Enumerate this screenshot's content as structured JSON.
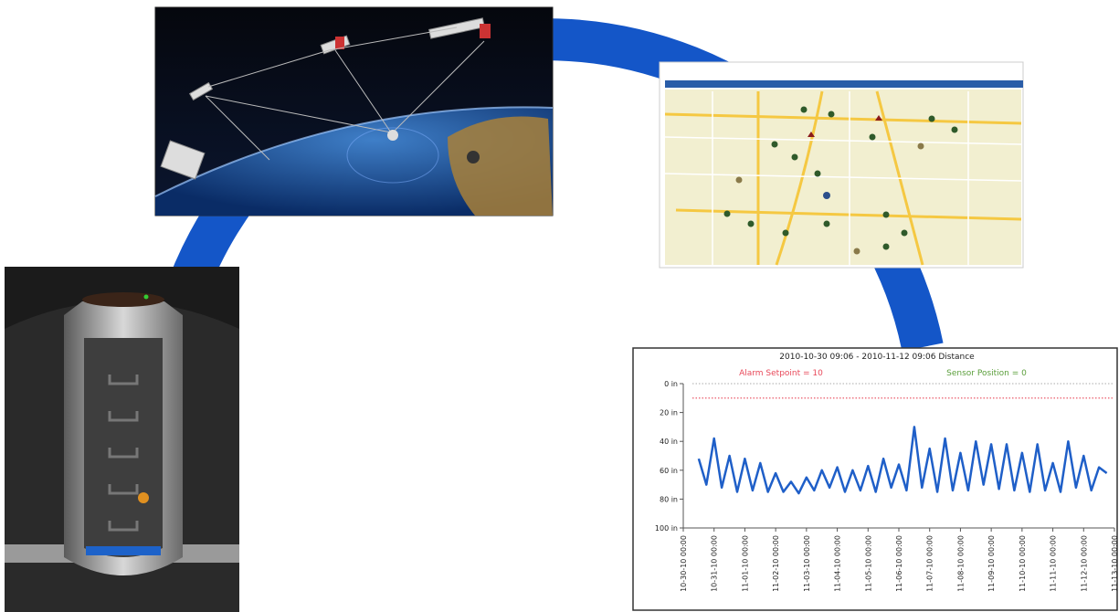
{
  "chart_data": {
    "type": "line",
    "title": "2010-10-30 09:06 - 2010-11-12 09:06 Distance",
    "color": "#1f5fc8",
    "x": [
      "2010-10-30 12:00",
      "2010-10-30 18:00",
      "2010-10-31 00:00",
      "2010-10-31 06:00",
      "2010-10-31 12:00",
      "2010-10-31 18:00",
      "2010-11-01 00:00",
      "2010-11-01 06:00",
      "2010-11-01 12:00",
      "2010-11-01 18:00",
      "2010-11-02 00:00",
      "2010-11-02 06:00",
      "2010-11-02 12:00",
      "2010-11-02 18:00",
      "2010-11-03 00:00",
      "2010-11-03 06:00",
      "2010-11-03 12:00",
      "2010-11-03 18:00",
      "2010-11-04 00:00",
      "2010-11-04 06:00",
      "2010-11-04 12:00",
      "2010-11-04 18:00",
      "2010-11-05 00:00",
      "2010-11-05 06:00",
      "2010-11-05 12:00",
      "2010-11-05 18:00",
      "2010-11-06 00:00",
      "2010-11-06 06:00",
      "2010-11-06 12:00",
      "2010-11-06 18:00",
      "2010-11-07 00:00",
      "2010-11-07 06:00",
      "2010-11-07 12:00",
      "2010-11-07 18:00",
      "2010-11-08 00:00",
      "2010-11-08 06:00",
      "2010-11-08 12:00",
      "2010-11-08 18:00",
      "2010-11-09 00:00",
      "2010-11-09 06:00",
      "2010-11-09 12:00",
      "2010-11-09 18:00",
      "2010-11-10 00:00",
      "2010-11-10 06:00",
      "2010-11-10 12:00",
      "2010-11-10 18:00",
      "2010-11-11 00:00",
      "2010-11-11 06:00",
      "2010-11-11 12:00",
      "2010-11-11 18:00",
      "2010-11-12 00:00",
      "2010-11-12 06:00",
      "2010-11-12 12:00",
      "2010-11-12 18:00"
    ],
    "values": [
      52,
      70,
      38,
      72,
      50,
      75,
      52,
      74,
      55,
      75,
      62,
      75,
      68,
      76,
      65,
      74,
      60,
      72,
      58,
      75,
      60,
      74,
      57,
      75,
      52,
      72,
      56,
      74,
      30,
      72,
      45,
      75,
      38,
      74,
      48,
      74,
      40,
      70,
      42,
      73,
      42,
      74,
      48,
      75,
      42,
      74,
      55,
      75,
      40,
      72,
      50,
      74,
      58,
      62
    ],
    "reference_lines": [
      {
        "label": "Alarm Setpoint = 10",
        "value": 10,
        "color": "#e8495a"
      },
      {
        "label": "Sensor Position = 0",
        "value": 0,
        "color": "#5a9e3a"
      }
    ],
    "xlim": [
      "2010-10-30 00:00",
      "2010-11-13 00:00"
    ],
    "xticks": [
      {
        "value": "2010-10-30 00:00",
        "label": "10-30-10 00:00"
      },
      {
        "value": "2010-10-31 00:00",
        "label": "10-31-10 00:00"
      },
      {
        "value": "2010-11-01 00:00",
        "label": "11-01-10 00:00"
      },
      {
        "value": "2010-11-02 00:00",
        "label": "11-02-10 00:00"
      },
      {
        "value": "2010-11-03 00:00",
        "label": "11-03-10 00:00"
      },
      {
        "value": "2010-11-04 00:00",
        "label": "11-04-10 00:00"
      },
      {
        "value": "2010-11-05 00:00",
        "label": "11-05-10 00:00"
      },
      {
        "value": "2010-11-06 00:00",
        "label": "11-06-10 00:00"
      },
      {
        "value": "2010-11-07 00:00",
        "label": "11-07-10 00:00"
      },
      {
        "value": "2010-11-08 00:00",
        "label": "11-08-10 00:00"
      },
      {
        "value": "2010-11-09 00:00",
        "label": "11-09-10 00:00"
      },
      {
        "value": "2010-11-10 00:00",
        "label": "11-10-10 00:00"
      },
      {
        "value": "2010-11-11 00:00",
        "label": "11-11-10 00:00"
      },
      {
        "value": "2010-11-12 00:00",
        "label": "11-12-10 00:00"
      },
      {
        "value": "2010-11-13 00:00",
        "label": "11-13-10 00:00"
      }
    ],
    "ylim": [
      0,
      100
    ],
    "y_inverted": true,
    "yticks": [
      {
        "value": 0,
        "label": "0 in"
      },
      {
        "value": 20,
        "label": "20 in"
      },
      {
        "value": 40,
        "label": "40 in"
      },
      {
        "value": 60,
        "label": "60 in"
      },
      {
        "value": 80,
        "label": "80 in"
      },
      {
        "value": 100,
        "label": "100 in"
      }
    ]
  }
}
